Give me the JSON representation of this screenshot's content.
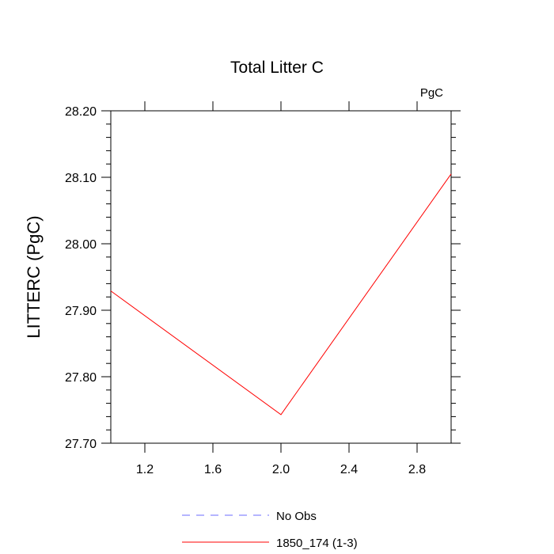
{
  "chart_data": {
    "type": "line",
    "title": "Total Litter C",
    "units_label": "PgC",
    "xlabel": "",
    "ylabel": "LITTERC  (PgC)",
    "xlim": [
      1.0,
      3.0
    ],
    "ylim": [
      27.7,
      28.2
    ],
    "x_ticks": [
      1.2,
      1.6,
      2.0,
      2.4,
      2.8
    ],
    "x_tick_labels": [
      "1.2",
      "1.6",
      "2.0",
      "2.4",
      "2.8"
    ],
    "y_ticks": [
      27.7,
      27.8,
      27.9,
      28.0,
      28.1,
      28.2
    ],
    "y_tick_labels": [
      "27.70",
      "27.80",
      "27.90",
      "28.00",
      "28.10",
      "28.20"
    ],
    "grid": false,
    "legend_position": "bottom",
    "series": [
      {
        "name": "No Obs",
        "color": "#6b6bff",
        "dash": "dashed",
        "x": [],
        "y": []
      },
      {
        "name": "1850_174 (1-3)",
        "color": "#ff0000",
        "dash": "solid",
        "x": [
          1,
          2,
          3
        ],
        "y": [
          27.929,
          27.743,
          28.105
        ]
      }
    ]
  }
}
